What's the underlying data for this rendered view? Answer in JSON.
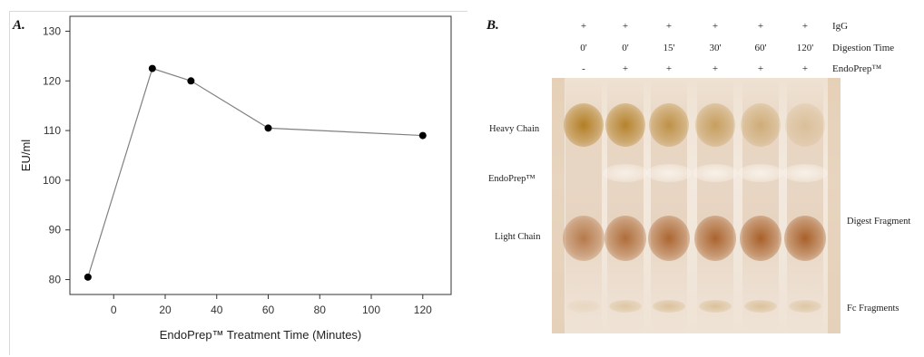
{
  "panel_a": {
    "label": "A.",
    "chart_data": {
      "type": "line",
      "xlabel": "EndoPrep™ Treatment Time (Minutes)",
      "ylabel": "EU/ml",
      "x": [
        -10,
        15,
        30,
        60,
        120
      ],
      "y": [
        80.5,
        122.5,
        120,
        110.5,
        109
      ],
      "xlim": [
        -17,
        131
      ],
      "ylim": [
        77,
        133
      ],
      "xticks": [
        0,
        20,
        40,
        60,
        80,
        100,
        120
      ],
      "yticks": [
        80,
        90,
        100,
        110,
        120,
        130
      ],
      "grid": false,
      "series_color": "#808080",
      "marker_color": "#000000"
    }
  },
  "panel_b": {
    "label": "B.",
    "rows": [
      {
        "label": "IgG",
        "values": [
          "+",
          "+",
          "+",
          "+",
          "+",
          "+"
        ]
      },
      {
        "label": "Digestion Time",
        "values": [
          "0'",
          "0'",
          "15'",
          "30'",
          "60'",
          "120'"
        ]
      },
      {
        "label": "EndoPrep™",
        "values": [
          "-",
          "+",
          "+",
          "+",
          "+",
          "+"
        ]
      }
    ],
    "left_labels": {
      "heavy": "Heavy Chain",
      "endoprep": "EndoPrep™",
      "light": "Light Chain"
    },
    "right_labels": {
      "digest": "Digest Fragment",
      "fc": "Fc Fragments"
    },
    "colors": {
      "gel_background": "#efe2d3",
      "heavy_band": "#b07a1c",
      "light_band": "#a55a22",
      "endoprep_band": "#fbf6ef"
    },
    "lanes": [
      {
        "heavy": 0.95,
        "endoprep": 0.0,
        "light": 0.75,
        "fc": 0.1
      },
      {
        "heavy": 0.9,
        "endoprep": 0.8,
        "light": 0.85,
        "fc": 0.25
      },
      {
        "heavy": 0.75,
        "endoprep": 0.85,
        "light": 0.9,
        "fc": 0.3
      },
      {
        "heavy": 0.6,
        "endoprep": 0.85,
        "light": 0.92,
        "fc": 0.3
      },
      {
        "heavy": 0.45,
        "endoprep": 0.85,
        "light": 0.95,
        "fc": 0.3
      },
      {
        "heavy": 0.25,
        "endoprep": 0.85,
        "light": 0.95,
        "fc": 0.25
      }
    ]
  }
}
